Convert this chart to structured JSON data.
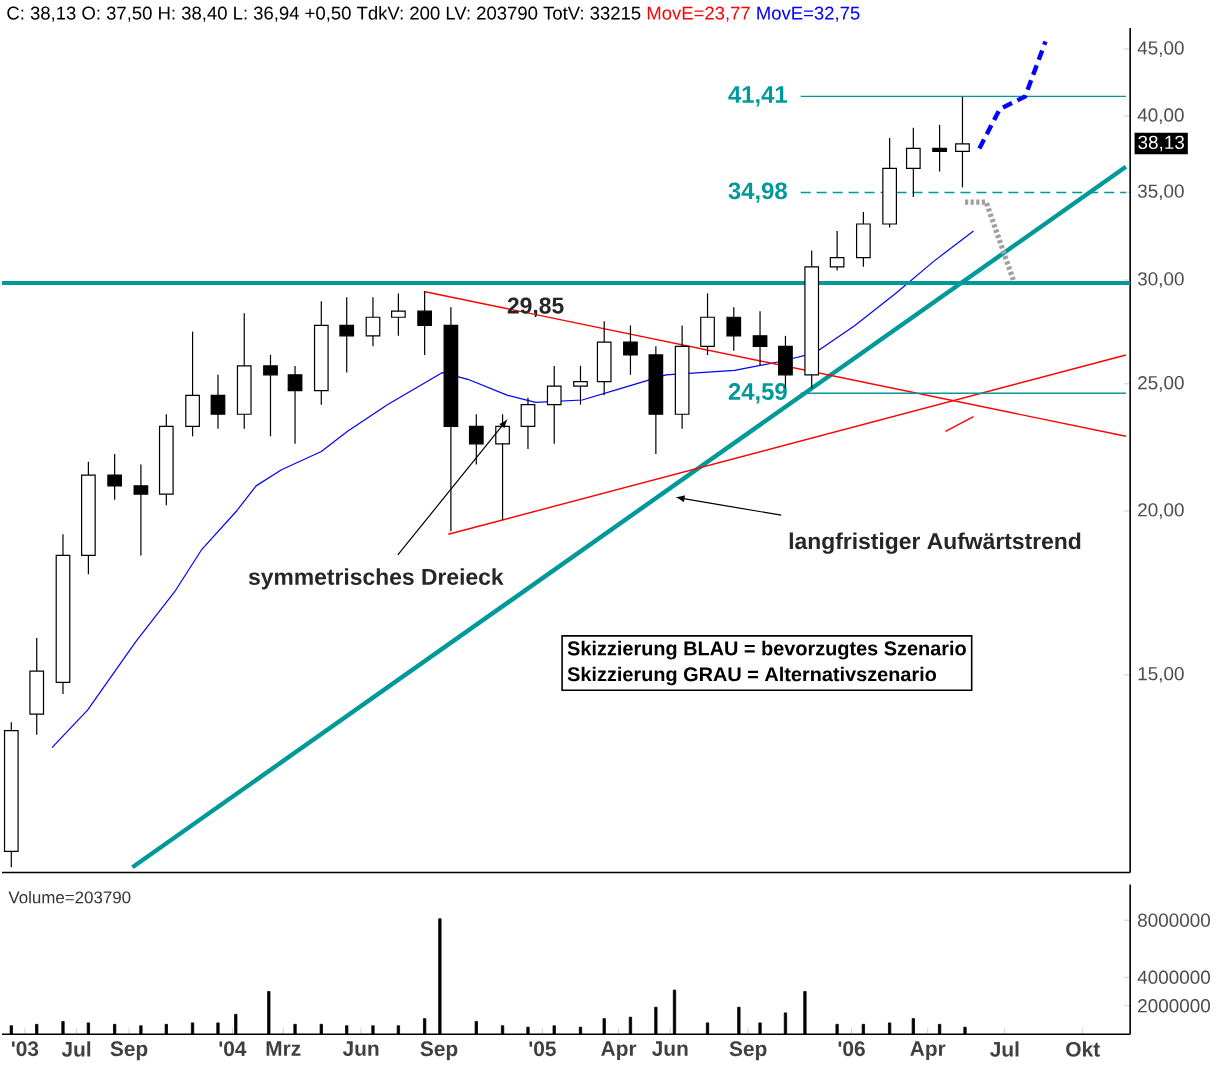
{
  "chart_data": [
    {
      "type": "candlestick",
      "title": "C: 38,13 O: 37,50 H: 38,40 L: 36,94 +0,50 TdkV: 200 LV: 203790 TotV: 33215",
      "subtitle": "MovE=23,77",
      "color": "#000000",
      "log": true,
      "tick_labels": "y",
      "xlim": [
        "2003-04-04",
        "2006-11-26"
      ],
      "ylim": [
        10.6,
        46.7
      ],
      "yticks": [
        {
          "value": 15,
          "label": "15,00"
        },
        {
          "value": 20,
          "label": "20,00"
        },
        {
          "value": 25,
          "label": "25,00"
        },
        {
          "value": 30,
          "label": "30,00"
        },
        {
          "value": 35,
          "label": "35,00"
        },
        {
          "value": 40,
          "label": "40,00"
        },
        {
          "value": 45,
          "label": "45,00"
        }
      ],
      "x": [
        "2003-04-15",
        "2003-05-15",
        "2003-06-15",
        "2003-07-15",
        "2003-08-15",
        "2003-09-15",
        "2003-10-15",
        "2003-11-15",
        "2003-12-15",
        "2004-01-15",
        "2004-02-15",
        "2004-03-15",
        "2004-04-15",
        "2004-05-15",
        "2004-06-15",
        "2004-07-15",
        "2004-08-15",
        "2004-09-15",
        "2004-10-15",
        "2004-11-15",
        "2004-12-15",
        "2005-01-15",
        "2005-02-15",
        "2005-03-15",
        "2005-04-15",
        "2005-05-15",
        "2005-06-15",
        "2005-07-15",
        "2005-08-15",
        "2005-09-15",
        "2005-10-15",
        "2005-11-15",
        "2005-12-15",
        "2006-01-15",
        "2006-02-15",
        "2006-03-15",
        "2006-04-15",
        "2006-05-12"
      ],
      "ohlc": [
        [
          11.0,
          13.8,
          10.7,
          13.6
        ],
        [
          14.0,
          16.0,
          13.5,
          15.1
        ],
        [
          14.8,
          19.2,
          14.5,
          18.5
        ],
        [
          18.5,
          21.8,
          17.9,
          21.3
        ],
        [
          21.3,
          22.1,
          20.4,
          20.9
        ],
        [
          20.9,
          21.7,
          18.5,
          20.6
        ],
        [
          20.6,
          23.7,
          20.2,
          23.2
        ],
        [
          23.2,
          27.4,
          22.8,
          24.5
        ],
        [
          24.5,
          25.4,
          23.1,
          23.7
        ],
        [
          23.7,
          28.3,
          23.1,
          25.8
        ],
        [
          25.8,
          26.3,
          22.8,
          25.4
        ],
        [
          25.4,
          25.8,
          22.5,
          24.7
        ],
        [
          24.7,
          28.9,
          24.1,
          27.7
        ],
        [
          27.7,
          29.1,
          25.5,
          27.2
        ],
        [
          27.2,
          29.1,
          26.7,
          28.1
        ],
        [
          28.1,
          29.3,
          27.2,
          28.4
        ],
        [
          28.4,
          29.4,
          26.3,
          27.7
        ],
        [
          27.7,
          28.6,
          19.3,
          23.2
        ],
        [
          23.2,
          23.7,
          21.7,
          22.5
        ],
        [
          22.5,
          23.7,
          19.7,
          23.2
        ],
        [
          23.2,
          24.4,
          22.3,
          24.1
        ],
        [
          24.1,
          25.8,
          22.5,
          24.9
        ],
        [
          24.9,
          25.8,
          24.1,
          25.1
        ],
        [
          25.1,
          27.9,
          24.5,
          26.9
        ],
        [
          26.9,
          27.7,
          25.4,
          26.3
        ],
        [
          26.3,
          26.7,
          22.1,
          23.7
        ],
        [
          23.7,
          27.7,
          23.1,
          26.7
        ],
        [
          26.7,
          29.3,
          26.3,
          28.1
        ],
        [
          28.1,
          28.6,
          26.5,
          27.2
        ],
        [
          27.2,
          28.4,
          25.8,
          26.7
        ],
        [
          26.7,
          27.2,
          24.8,
          25.4
        ],
        [
          25.4,
          31.6,
          24.8,
          30.7
        ],
        [
          30.7,
          32.7,
          30.5,
          31.2
        ],
        [
          31.2,
          33.8,
          30.7,
          33.1
        ],
        [
          33.1,
          38.5,
          32.9,
          36.5
        ],
        [
          36.5,
          39.2,
          34.7,
          37.8
        ],
        [
          37.8,
          39.4,
          36.3,
          37.6
        ],
        [
          37.6,
          41.4,
          35.3,
          38.1
        ]
      ],
      "series": [
        {
          "type": "line",
          "name": "MovE=32,75",
          "color": "#0000ff",
          "x": [
            "2003-06-02",
            "2003-07-14",
            "2003-09-09",
            "2003-10-26",
            "2003-11-26",
            "2004-01-06",
            "2004-01-29",
            "2004-02-28",
            "2004-04-15",
            "2004-05-16",
            "2004-07-02",
            "2004-09-05",
            "2004-10-05",
            "2004-11-21",
            "2004-12-24",
            "2005-02-17",
            "2005-04-04",
            "2005-05-27",
            "2005-08-16",
            "2005-10-09",
            "2005-11-19",
            "2006-01-05",
            "2006-02-22",
            "2006-04-08",
            "2006-05-25"
          ],
          "values": [
            13.2,
            14.1,
            15.9,
            17.4,
            18.7,
            20.0,
            20.9,
            21.5,
            22.2,
            23.0,
            24.1,
            25.5,
            25.2,
            24.5,
            24.2,
            24.3,
            24.8,
            25.4,
            25.6,
            26.0,
            26.4,
            27.7,
            29.3,
            31.0,
            32.7
          ]
        },
        {
          "type": "line",
          "color": "#009999",
          "x": [
            "2003-09-05",
            "2006-11-21"
          ],
          "values": [
            10.7,
            36.6
          ]
        },
        {
          "type": "line",
          "color": "#ff0000",
          "x": [
            "2004-08-14",
            "2006-11-21"
          ],
          "values": [
            29.4,
            22.8
          ]
        },
        {
          "type": "line",
          "color": "#ff0000",
          "x": [
            "2004-09-12",
            "2006-11-21"
          ],
          "values": [
            19.2,
            26.3
          ]
        },
        {
          "type": "line",
          "color": "#ff0000",
          "x": [
            "2006-04-22",
            "2006-05-25"
          ],
          "values": [
            23.0,
            23.6
          ]
        },
        {
          "type": "line",
          "color": "#009999",
          "x": [
            "2003-04-04",
            "2006-11-26"
          ],
          "values": [
            29.85,
            29.85
          ]
        },
        {
          "type": "line",
          "name": "41,41",
          "color": "#009999",
          "x": [
            "2005-11-02",
            "2006-11-21"
          ],
          "values": [
            41.41,
            41.41
          ]
        },
        {
          "type": "line",
          "name": "34,98",
          "color": "#009999",
          "line_style": "dashed",
          "x": [
            "2005-11-02",
            "2006-11-21"
          ],
          "values": [
            34.98,
            34.98
          ]
        },
        {
          "type": "line",
          "name": "24,59",
          "color": "#009999",
          "x": [
            "2005-11-02",
            "2006-11-21"
          ],
          "values": [
            24.59,
            24.59
          ]
        },
        {
          "type": "line",
          "color": "#0000ff",
          "line_style": "dashed",
          "x": [
            "2006-06-01",
            "2006-06-25",
            "2006-07-25",
            "2006-08-18"
          ],
          "values": [
            37.8,
            40.5,
            41.4,
            45.6
          ]
        },
        {
          "type": "line",
          "color": "#a0a0a0",
          "line_style": "dotted",
          "x": [
            "2006-05-15",
            "2006-06-09",
            "2006-07-11"
          ],
          "values": [
            34.4,
            34.4,
            30.0
          ]
        }
      ],
      "annotations": [
        {
          "text": "29,85",
          "x": "2004-12-24",
          "y": 28.6
        },
        {
          "text": "symmetrisches Dreieck",
          "x": "2004-11-21",
          "y": 23.5
        },
        "langfristiger Aufwärtstrend",
        "Skizzierung BLAU = bevorzugtes Szenario",
        "Skizzierung GRAU = Alternativszenario",
        {
          "text": "38,13",
          "y": 38.13
        }
      ]
    },
    {
      "type": "bar",
      "title": "Volume=203790",
      "color": "#000000",
      "xlim": [
        "2003-04-04",
        "2006-11-26"
      ],
      "ylim": [
        0,
        10500000
      ],
      "yticks": [
        2000000,
        4000000,
        8000000
      ],
      "xticks": [
        {
          "value": "2003-05-01",
          "label": "'03"
        },
        {
          "value": "2003-07-01",
          "label": "Jul"
        },
        {
          "value": "2003-09-01",
          "label": "Sep"
        },
        {
          "value": "2004-01-01",
          "label": "'04"
        },
        {
          "value": "2004-03-01",
          "label": "Mrz"
        },
        {
          "value": "2004-06-01",
          "label": "Jun"
        },
        {
          "value": "2004-09-01",
          "label": "Sep"
        },
        {
          "value": "2005-01-01",
          "label": "'05"
        },
        {
          "value": "2005-04-01",
          "label": "Apr"
        },
        {
          "value": "2005-06-01",
          "label": "Jun"
        },
        {
          "value": "2005-09-01",
          "label": "Sep"
        },
        {
          "value": "2006-01-01",
          "label": "'06"
        },
        {
          "value": "2006-04-01",
          "label": "Apr"
        },
        {
          "value": "2006-07-01",
          "label": "Jul"
        },
        {
          "value": "2006-10-01",
          "label": "Okt"
        }
      ],
      "x": [
        "2003-04-15",
        "2003-05-15",
        "2003-06-15",
        "2003-07-15",
        "2003-08-15",
        "2003-09-15",
        "2003-10-15",
        "2003-11-15",
        "2003-12-15",
        "2004-01-05",
        "2004-02-13",
        "2004-03-15",
        "2004-04-15",
        "2004-05-15",
        "2004-06-15",
        "2004-07-15",
        "2004-08-15",
        "2004-09-02",
        "2004-10-15",
        "2004-11-15",
        "2004-12-15",
        "2005-01-15",
        "2005-02-15",
        "2005-03-15",
        "2005-04-15",
        "2005-05-15",
        "2005-06-06",
        "2005-07-15",
        "2005-08-21",
        "2005-09-15",
        "2005-10-15",
        "2005-11-07",
        "2005-12-15",
        "2006-01-15",
        "2006-02-15",
        "2006-03-15",
        "2006-04-15",
        "2006-05-15"
      ],
      "values": [
        600000,
        700000,
        900000,
        800000,
        700000,
        600000,
        700000,
        800000,
        800000,
        1400000,
        3000000,
        700000,
        700000,
        600000,
        600000,
        600000,
        1100000,
        8100000,
        900000,
        600000,
        500000,
        600000,
        500000,
        1100000,
        1200000,
        1900000,
        3100000,
        800000,
        1900000,
        800000,
        1500000,
        3000000,
        700000,
        700000,
        800000,
        1100000,
        700000,
        500000
      ]
    }
  ]
}
